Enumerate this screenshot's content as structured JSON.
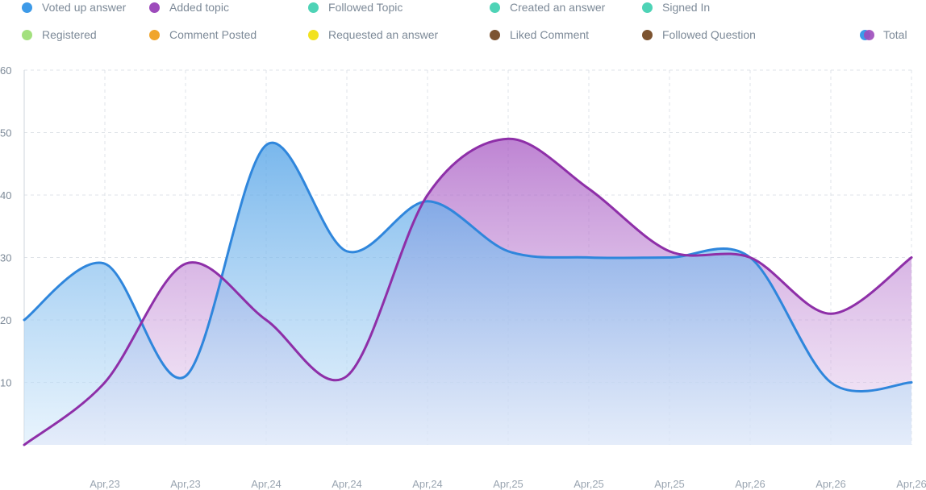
{
  "legend": {
    "items": [
      {
        "label": "Voted up answer",
        "color": "#3d9ae8"
      },
      {
        "label": "Added topic",
        "color": "#9d4bbb"
      },
      {
        "label": "Followed Topic",
        "color": "#4ed3b6"
      },
      {
        "label": "Created an answer",
        "color": "#4ed3b6"
      },
      {
        "label": "Signed In",
        "color": "#4ed3b6"
      },
      {
        "label": "Registered",
        "color": "#a3e07e"
      },
      {
        "label": "Comment Posted",
        "color": "#f0a52c"
      },
      {
        "label": "Requested an answer",
        "color": "#f2e21f"
      },
      {
        "label": "Liked Comment",
        "color": "#7c5330"
      },
      {
        "label": "Followed Question",
        "color": "#7c5330"
      }
    ],
    "total": {
      "label": "Total",
      "colors": [
        "#3d9ae8",
        "#9d4bbb"
      ]
    }
  },
  "chart_data": {
    "type": "area",
    "categories": [
      "",
      "Apr,23",
      "Apr,23",
      "Apr,24",
      "Apr,24",
      "Apr,24",
      "Apr,25",
      "Apr,25",
      "Apr,25",
      "Apr,26",
      "Apr,26",
      "Apr,26"
    ],
    "series": [
      {
        "name": "Voted up answer",
        "color": "#2f86dc",
        "values": [
          20,
          29,
          11,
          48,
          31,
          39,
          31,
          30,
          30,
          30,
          10,
          10
        ]
      },
      {
        "name": "Added topic",
        "color": "#8e2fa8",
        "values": [
          0,
          10,
          29,
          20,
          11,
          40,
          49,
          41,
          31,
          30,
          21,
          30
        ]
      }
    ],
    "y_ticks": [
      10,
      20,
      30,
      40,
      50,
      60
    ],
    "ylim": [
      0,
      60
    ],
    "grid": true,
    "legend_position": "top"
  }
}
